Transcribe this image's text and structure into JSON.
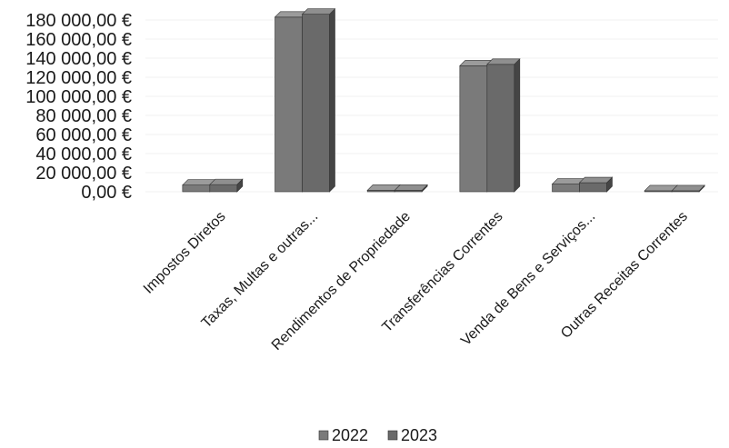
{
  "chart_data": {
    "type": "bar",
    "title": "",
    "xlabel": "",
    "ylabel": "",
    "categories": [
      "Impostos Diretos",
      "Taxas, Multas e outras...",
      "Rendimentos de Propriedade",
      "Transferências Correntes",
      "Venda de Bens e Serviços...",
      "Outras Receitas Correntes"
    ],
    "series": [
      {
        "name": "2022",
        "values": [
          7000,
          183000,
          1500,
          132000,
          8000,
          1000
        ]
      },
      {
        "name": "2023",
        "values": [
          7500,
          186000,
          1500,
          133500,
          9500,
          1000
        ]
      }
    ],
    "ylim": [
      0,
      180000
    ],
    "yticks": [
      "0,00 €",
      "20 000,00 €",
      "40 000,00 €",
      "60 000,00 €",
      "80 000,00 €",
      "100 000,00 €",
      "120 000,00 €",
      "140 000,00 €",
      "160 000,00 €",
      "180 000,00 €"
    ],
    "legend_position": "bottom",
    "grid": true,
    "colors": {
      "2022": "#7a7a7a",
      "2023": "#6a6a6a"
    }
  }
}
